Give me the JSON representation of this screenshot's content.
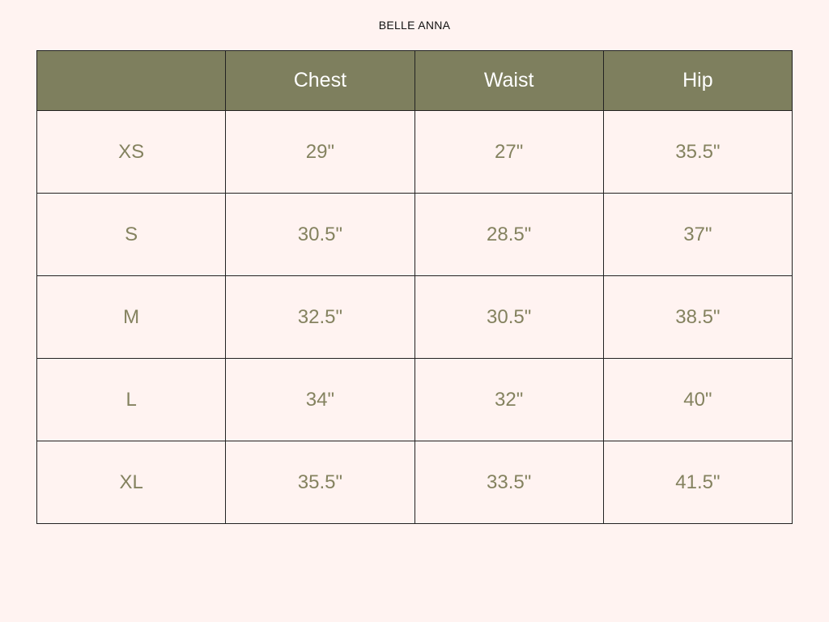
{
  "brand": "BELLE ANNA",
  "colors": {
    "header_bg": "#7e7f5e",
    "text": "#84825f",
    "background": "#fff3f1"
  },
  "table": {
    "headers": [
      "",
      "Chest",
      "Waist",
      "Hip"
    ],
    "rows": [
      [
        "XS",
        "29\"",
        "27\"",
        "35.5\""
      ],
      [
        "S",
        "30.5\"",
        "28.5\"",
        "37\""
      ],
      [
        "M",
        "32.5\"",
        "30.5\"",
        "38.5\""
      ],
      [
        "L",
        "34\"",
        "32\"",
        "40\""
      ],
      [
        "XL",
        "35.5\"",
        "33.5\"",
        "41.5\""
      ]
    ]
  }
}
